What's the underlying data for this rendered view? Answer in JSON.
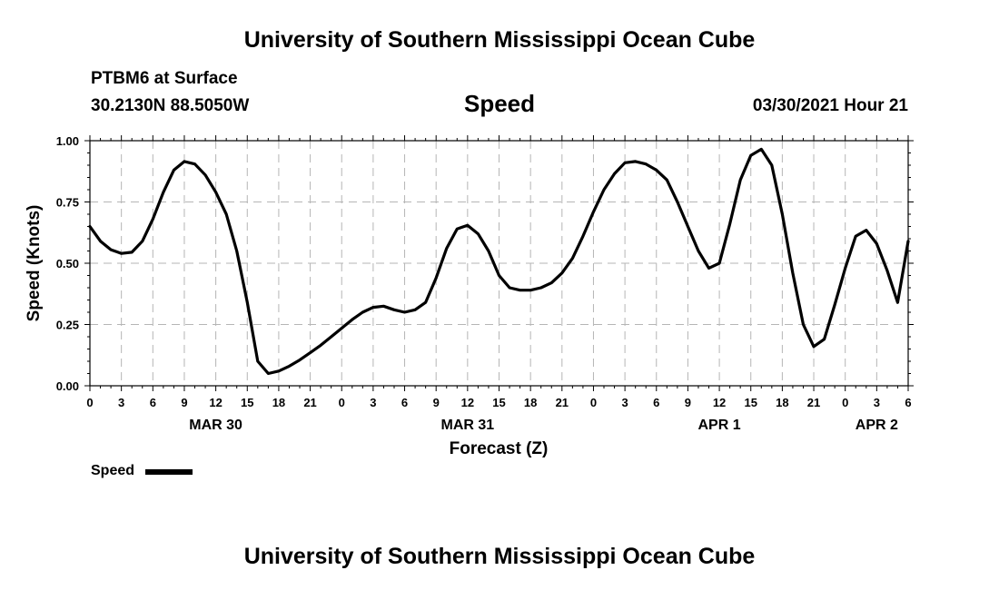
{
  "header": {
    "title_top": "University of Southern Mississippi Ocean Cube",
    "station": "PTBM6 at Surface",
    "coords": "30.2130N  88.5050W",
    "parameter": "Speed",
    "datetime": "03/30/2021 Hour 21"
  },
  "footer": {
    "title_bottom": "University of Southern Mississippi Ocean Cube"
  },
  "chart_data": {
    "type": "line",
    "title": "Speed",
    "xlabel": "Forecast (Z)",
    "ylabel": "Speed (Knots)",
    "ylim": [
      0,
      1
    ],
    "xlim": [
      0,
      78
    ],
    "grid": true,
    "legend_placement": "bottom-left",
    "y_ticks": [
      "0.00",
      "0.25",
      "0.50",
      "0.75",
      "1.00"
    ],
    "x_ticks": [
      "0",
      "3",
      "6",
      "9",
      "12",
      "15",
      "18",
      "21",
      "0",
      "3",
      "6",
      "9",
      "12",
      "15",
      "18",
      "21",
      "0",
      "3",
      "6",
      "9",
      "12",
      "15",
      "18",
      "21",
      "0",
      "3",
      "6"
    ],
    "day_labels": [
      {
        "label": "MAR 30",
        "hour": 12
      },
      {
        "label": "MAR 31",
        "hour": 36
      },
      {
        "label": "APR 1",
        "hour": 60
      },
      {
        "label": "APR 2",
        "hour": 75
      }
    ],
    "series": [
      {
        "name": "Speed",
        "color": "#000000",
        "x": [
          0,
          1,
          2,
          3,
          4,
          5,
          6,
          7,
          8,
          9,
          10,
          11,
          12,
          13,
          14,
          15,
          16,
          17,
          18,
          19,
          20,
          21,
          22,
          23,
          24,
          25,
          26,
          27,
          28,
          29,
          30,
          31,
          32,
          33,
          34,
          35,
          36,
          37,
          38,
          39,
          40,
          41,
          42,
          43,
          44,
          45,
          46,
          47,
          48,
          49,
          50,
          51,
          52,
          53,
          54,
          55,
          56,
          57,
          58,
          59,
          60,
          61,
          62,
          63,
          64,
          65,
          66,
          67,
          68,
          69,
          70,
          71,
          72,
          73,
          74,
          75,
          76,
          77,
          78
        ],
        "values": [
          0.65,
          0.59,
          0.555,
          0.54,
          0.545,
          0.59,
          0.68,
          0.79,
          0.88,
          0.915,
          0.905,
          0.86,
          0.79,
          0.7,
          0.55,
          0.34,
          0.1,
          0.05,
          0.06,
          0.08,
          0.105,
          0.135,
          0.165,
          0.2,
          0.235,
          0.27,
          0.3,
          0.32,
          0.325,
          0.31,
          0.3,
          0.31,
          0.34,
          0.44,
          0.56,
          0.64,
          0.655,
          0.62,
          0.55,
          0.45,
          0.4,
          0.39,
          0.39,
          0.4,
          0.42,
          0.46,
          0.52,
          0.61,
          0.71,
          0.8,
          0.865,
          0.91,
          0.915,
          0.905,
          0.88,
          0.84,
          0.75,
          0.65,
          0.55,
          0.48,
          0.5,
          0.66,
          0.84,
          0.94,
          0.965,
          0.9,
          0.7,
          0.46,
          0.25,
          0.16,
          0.19,
          0.33,
          0.48,
          0.61,
          0.635,
          0.58,
          0.47,
          0.34,
          0.59
        ]
      }
    ]
  },
  "legend": {
    "label": "Speed"
  }
}
